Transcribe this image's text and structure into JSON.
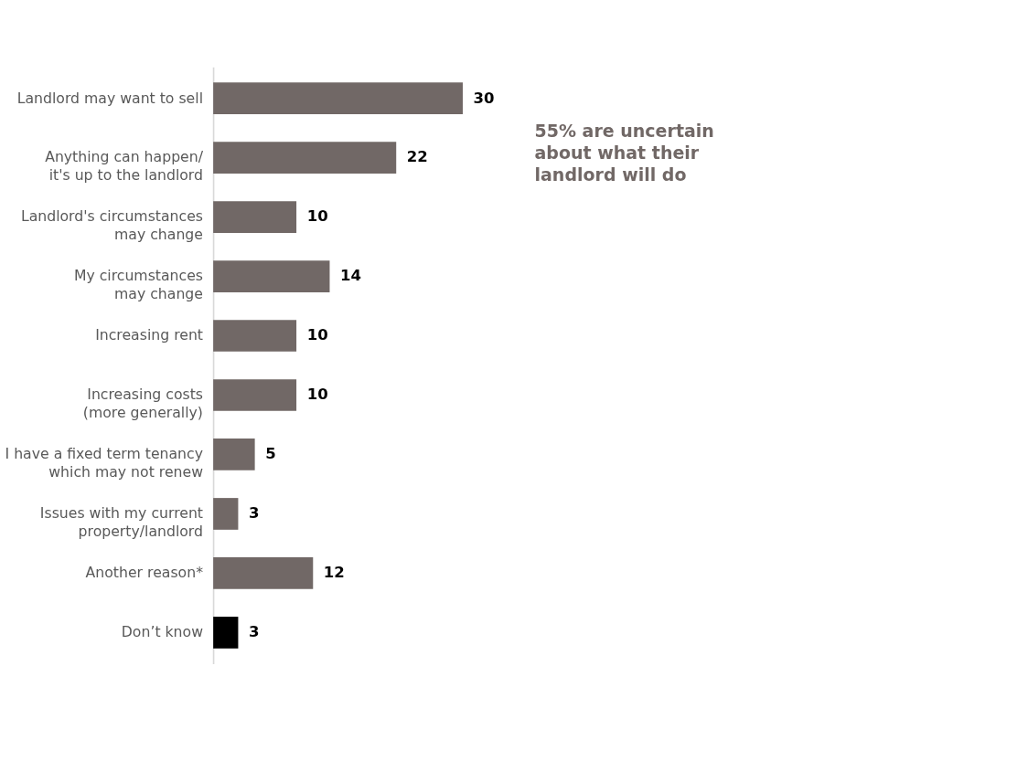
{
  "chart_data": {
    "type": "bar",
    "orientation": "horizontal",
    "categories": [
      "Landlord may want to sell",
      "Anything can happen/\nit's up to the landlord",
      "Landlord's circumstances\nmay change",
      "My circumstances\nmay change",
      "Increasing rent",
      "Increasing costs\n(more generally)",
      "I have a fixed term tenancy\nwhich may not renew",
      "Issues with my current\nproperty/landlord",
      "Another reason*",
      "Don’t know"
    ],
    "values": [
      30,
      22,
      10,
      14,
      10,
      10,
      5,
      3,
      12,
      3
    ],
    "colors": [
      "#716866",
      "#716866",
      "#716866",
      "#716866",
      "#716866",
      "#716866",
      "#716866",
      "#716866",
      "#716866",
      "#000000"
    ],
    "data_labels": true,
    "annotations": [
      "55% are uncertain\nabout what their\nlandlord will do"
    ]
  }
}
